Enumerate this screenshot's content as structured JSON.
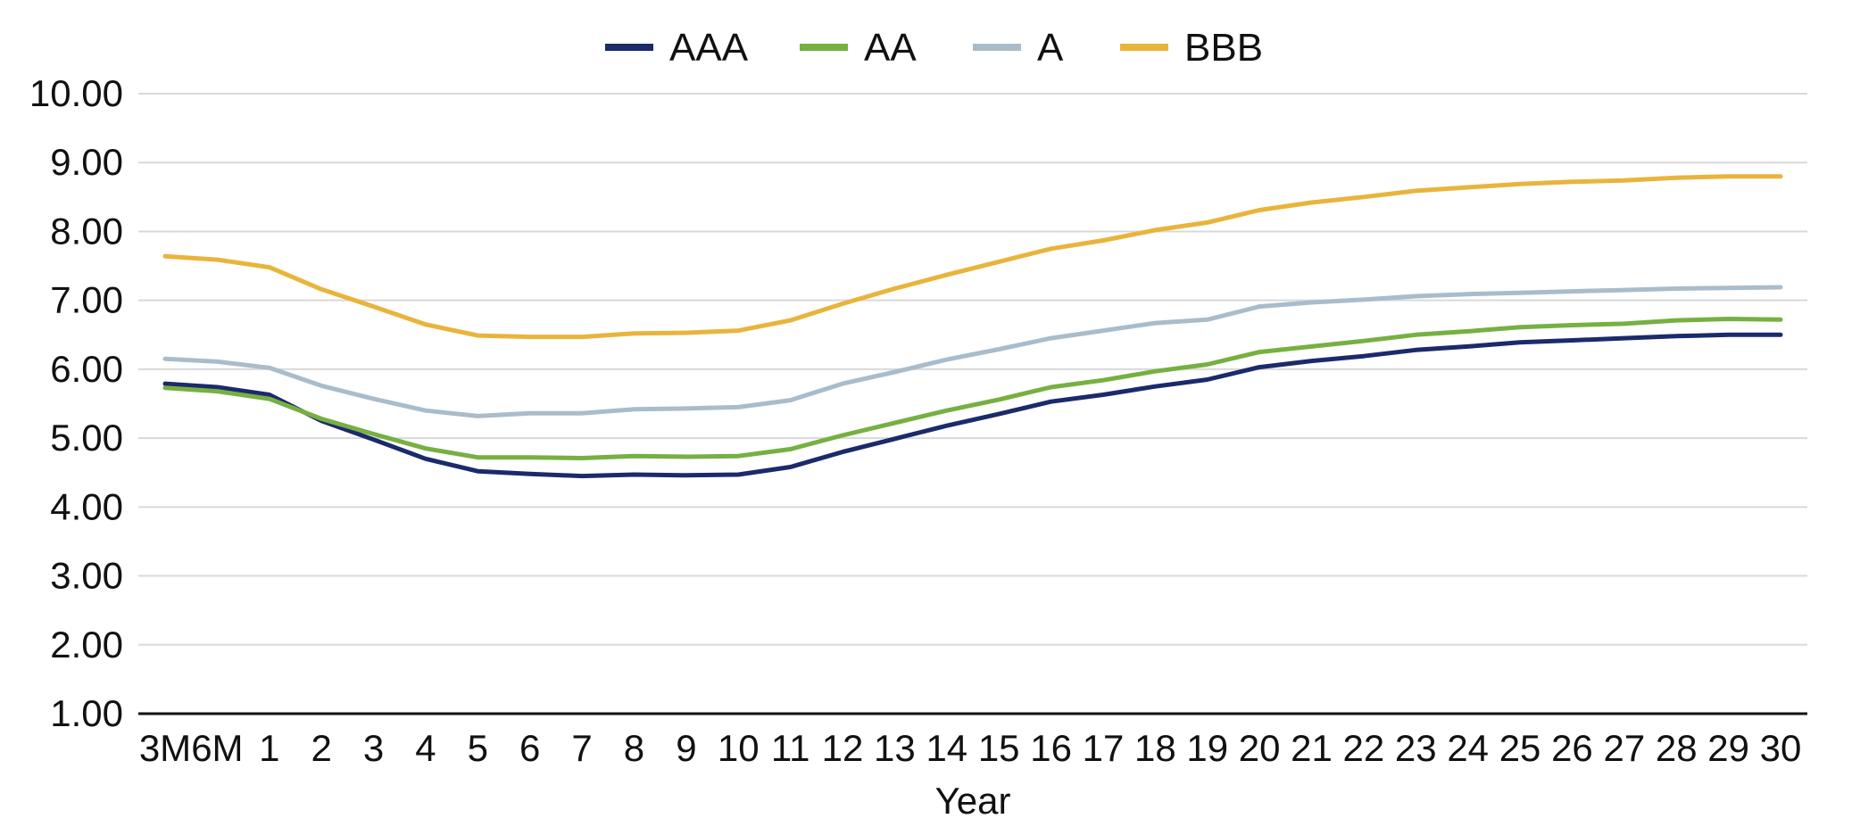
{
  "chart_data": {
    "type": "line",
    "title": "",
    "xlabel": "Year",
    "ylabel": "",
    "ylim": [
      1,
      10
    ],
    "y_ticks": [
      "1.00",
      "2.00",
      "3.00",
      "4.00",
      "5.00",
      "6.00",
      "7.00",
      "8.00",
      "9.00",
      "10.00"
    ],
    "grid": true,
    "legend_position": "top-center",
    "categories": [
      "3M",
      "6M",
      "1",
      "2",
      "3",
      "4",
      "5",
      "6",
      "7",
      "8",
      "9",
      "10",
      "11",
      "12",
      "13",
      "14",
      "15",
      "16",
      "17",
      "18",
      "19",
      "20",
      "21",
      "22",
      "23",
      "24",
      "25",
      "26",
      "27",
      "28",
      "29",
      "30"
    ],
    "series": [
      {
        "name": "AAA",
        "color": "#1b2a6b",
        "values": [
          5.79,
          5.74,
          5.63,
          5.25,
          4.98,
          4.7,
          4.52,
          4.48,
          4.45,
          4.47,
          4.46,
          4.47,
          4.58,
          4.8,
          4.99,
          5.18,
          5.35,
          5.53,
          5.63,
          5.75,
          5.85,
          6.03,
          6.12,
          6.19,
          6.28,
          6.33,
          6.39,
          6.42,
          6.45,
          6.48,
          6.5,
          6.5
        ]
      },
      {
        "name": "AA",
        "color": "#76b041",
        "values": [
          5.73,
          5.68,
          5.57,
          5.28,
          5.06,
          4.85,
          4.72,
          4.72,
          4.71,
          4.74,
          4.73,
          4.74,
          4.84,
          5.04,
          5.22,
          5.4,
          5.56,
          5.74,
          5.84,
          5.97,
          6.07,
          6.25,
          6.33,
          6.41,
          6.5,
          6.55,
          6.61,
          6.64,
          6.66,
          6.71,
          6.73,
          6.72
        ]
      },
      {
        "name": "A",
        "color": "#a9bccb",
        "values": [
          6.15,
          6.11,
          6.02,
          5.76,
          5.57,
          5.4,
          5.32,
          5.36,
          5.36,
          5.42,
          5.43,
          5.45,
          5.55,
          5.79,
          5.96,
          6.14,
          6.29,
          6.45,
          6.56,
          6.67,
          6.72,
          6.91,
          6.97,
          7.01,
          7.06,
          7.09,
          7.11,
          7.13,
          7.15,
          7.17,
          7.18,
          7.19
        ]
      },
      {
        "name": "BBB",
        "color": "#e9b43c",
        "values": [
          7.64,
          7.59,
          7.48,
          7.16,
          6.91,
          6.65,
          6.49,
          6.47,
          6.47,
          6.52,
          6.53,
          6.56,
          6.71,
          6.95,
          7.17,
          7.37,
          7.56,
          7.75,
          7.87,
          8.02,
          8.13,
          8.31,
          8.42,
          8.5,
          8.59,
          8.64,
          8.69,
          8.72,
          8.74,
          8.78,
          8.8,
          8.8
        ]
      }
    ]
  }
}
